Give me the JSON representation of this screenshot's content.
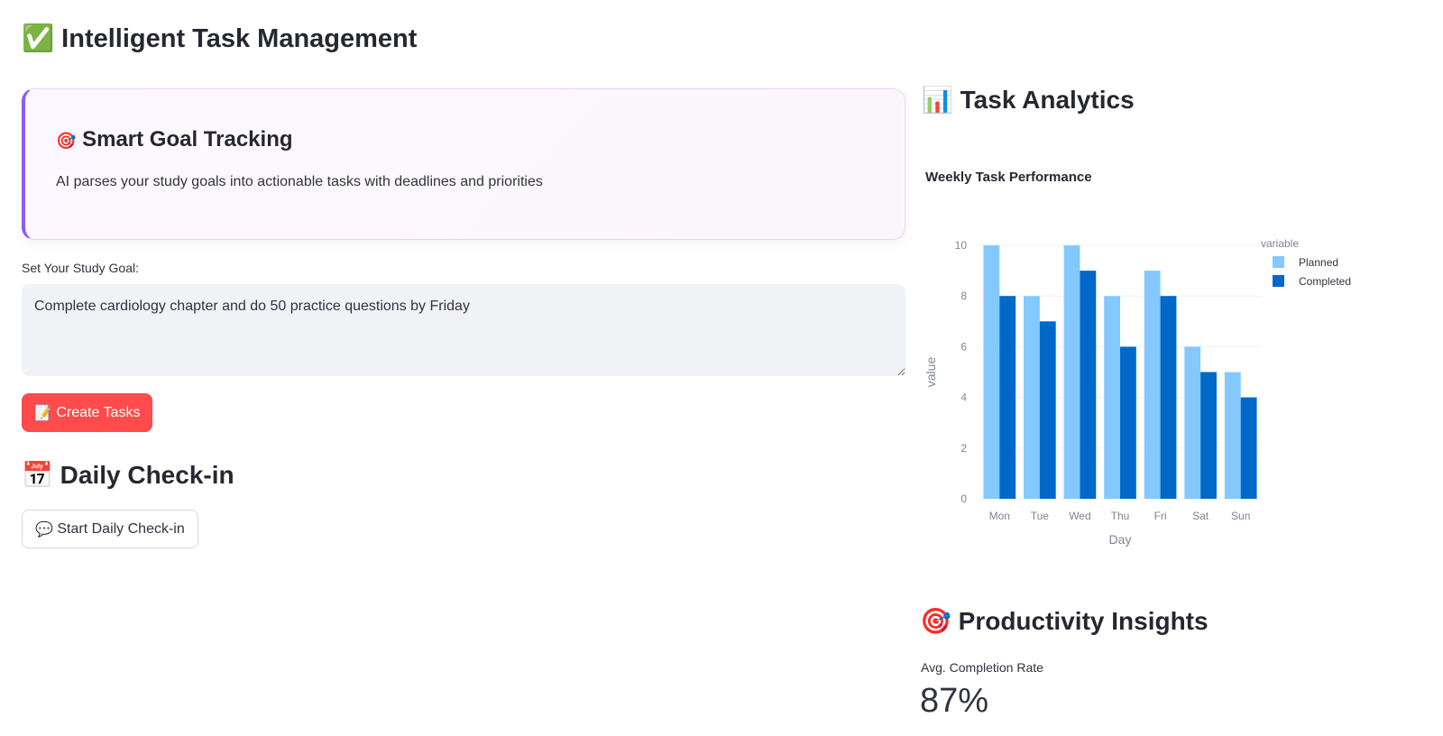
{
  "app": {
    "title": "Intelligent Task Management",
    "title_icon": "✅"
  },
  "feature_card": {
    "icon": "🎯",
    "title": "Smart Goal Tracking",
    "description": "AI parses your study goals into actionable tasks with deadlines and priorities",
    "accent": "#8b5cf6"
  },
  "goal_input": {
    "label": "Set Your Study Goal:",
    "value": "Complete cardiology chapter and do 50 practice questions by Friday"
  },
  "create_button": {
    "icon": "📝",
    "label": "Create Tasks",
    "color": "#ff4b4b"
  },
  "checkin": {
    "icon": "📅",
    "title": "Daily Check-in",
    "button_icon": "💬",
    "button_label": "Start Daily Check-in"
  },
  "analytics": {
    "icon": "📊",
    "title": "Task Analytics"
  },
  "insights": {
    "icon": "🎯",
    "title": "Productivity Insights",
    "metric_label": "Avg. Completion Rate",
    "metric_value": "87%"
  },
  "chart_data": {
    "type": "bar",
    "title": "Weekly Task Performance",
    "xlabel": "Day",
    "ylabel": "value",
    "categories": [
      "Mon",
      "Tue",
      "Wed",
      "Thu",
      "Fri",
      "Sat",
      "Sun"
    ],
    "ylim": [
      0,
      10
    ],
    "yticks": [
      "0",
      "2",
      "4",
      "6",
      "8",
      "10"
    ],
    "legend_title": "variable",
    "legend_position": "right",
    "grid": true,
    "series": [
      {
        "name": "Planned",
        "color": "#83c9ff",
        "values": [
          10,
          8,
          10,
          8,
          9,
          6,
          5
        ]
      },
      {
        "name": "Completed",
        "color": "#0068c9",
        "values": [
          8,
          7,
          9,
          6,
          8,
          5,
          4
        ]
      }
    ]
  }
}
